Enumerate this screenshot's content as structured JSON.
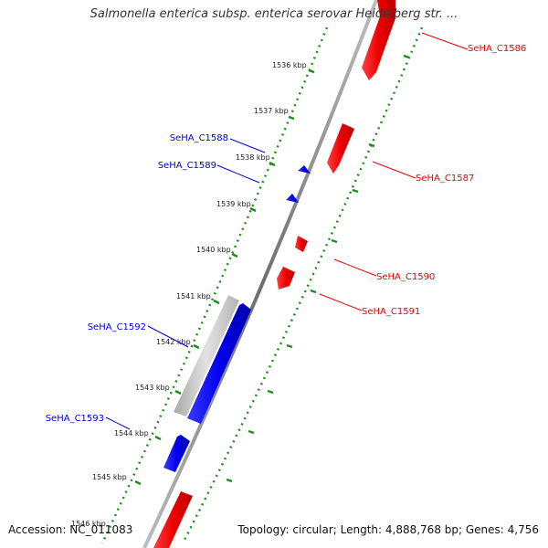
{
  "title": "Salmonella enterica subsp. enterica serovar Heidelberg str. ...",
  "accession": "Accession: NC_011083",
  "summary": "Topology: circular; Length: 4,888,768 bp; Genes: 4,756",
  "colors": {
    "forward_gene": "#ee0000",
    "reverse_gene": "#0000dd",
    "pseudo_gene": "#c8c8c8",
    "tick_marks": "#228b22",
    "backbone": "#808080"
  },
  "ticks": [
    {
      "label": "1536 kbp"
    },
    {
      "label": "1537 kbp"
    },
    {
      "label": "1538 kbp"
    },
    {
      "label": "1539 kbp"
    },
    {
      "label": "1540 kbp"
    },
    {
      "label": "1541 kbp"
    },
    {
      "label": "1542 kbp"
    },
    {
      "label": "1543 kbp"
    },
    {
      "label": "1544 kbp"
    },
    {
      "label": "1545 kbp"
    },
    {
      "label": "1546 kbp"
    }
  ],
  "genes": [
    {
      "name": "SeHA_C1586",
      "strand": "forward"
    },
    {
      "name": "SeHA_C1587",
      "strand": "forward"
    },
    {
      "name": "SeHA_C1588",
      "strand": "reverse"
    },
    {
      "name": "SeHA_C1589",
      "strand": "reverse"
    },
    {
      "name": "SeHA_C1590",
      "strand": "forward"
    },
    {
      "name": "SeHA_C1591",
      "strand": "forward"
    },
    {
      "name": "SeHA_C1592",
      "strand": "reverse"
    },
    {
      "name": "SeHA_C1593",
      "strand": "reverse"
    },
    {
      "name": "",
      "strand": "forward"
    }
  ]
}
